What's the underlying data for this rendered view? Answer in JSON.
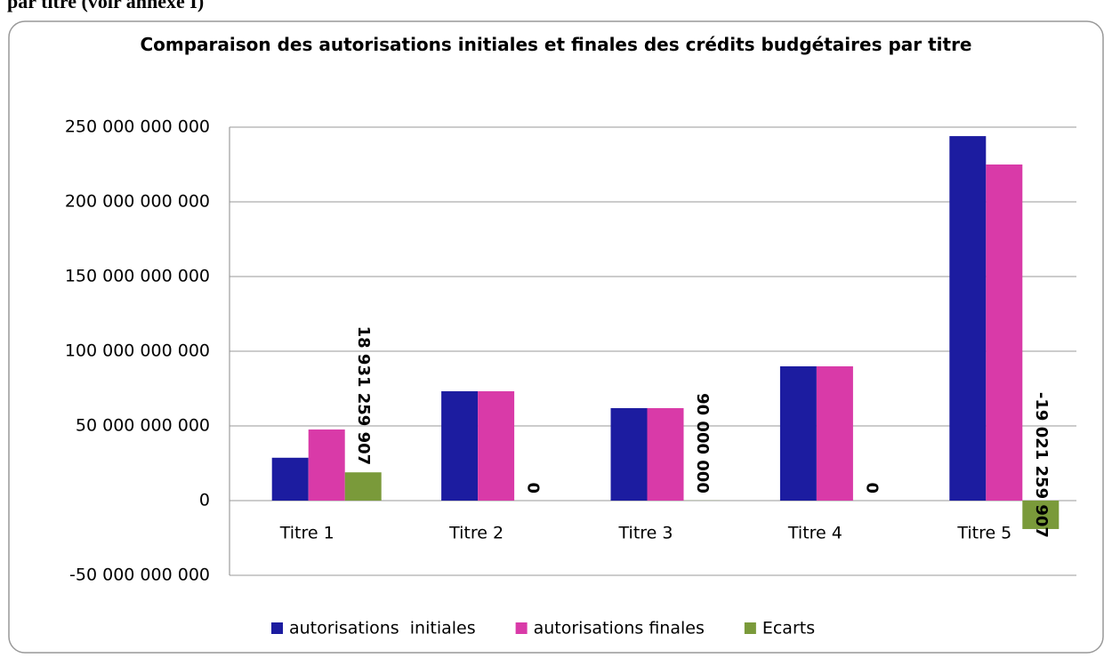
{
  "page_heading": "par titre (voir annexe I)",
  "chart_data": {
    "type": "bar",
    "title": "Comparaison des autorisations initiales et finales des crédits budgétaires par titre",
    "categories": [
      "Titre 1",
      "Titre 2",
      "Titre 3",
      "Titre 4",
      "Titre 5"
    ],
    "series": [
      {
        "name": "autorisations  initiales",
        "color": "#1c1ca0",
        "values": [
          28700000000,
          73200000000,
          61900000000,
          89900000000,
          244000000000
        ]
      },
      {
        "name": "autorisations finales",
        "color": "#d93aa8",
        "values": [
          47600000000,
          73200000000,
          61900000000,
          89900000000,
          225000000000
        ]
      },
      {
        "name": "Ecarts",
        "color": "#7a9a3a",
        "values": [
          18931259907,
          0,
          90000000,
          0,
          -19021259907
        ],
        "value_labels": [
          "18 931 259 907",
          "0",
          "90 000 000",
          "0",
          "-19 021 259 907"
        ]
      }
    ],
    "ylim": [
      -50000000000,
      250000000000
    ],
    "yticks": [
      {
        "value": -50000000000,
        "label": "-50 000 000 000"
      },
      {
        "value": 0,
        "label": "0"
      },
      {
        "value": 50000000000,
        "label": "50 000 000 000"
      },
      {
        "value": 100000000000,
        "label": "100 000 000 000"
      },
      {
        "value": 150000000000,
        "label": "150 000 000 000"
      },
      {
        "value": 200000000000,
        "label": "200 000 000 000"
      },
      {
        "value": 250000000000,
        "label": "250 000 000 000"
      }
    ],
    "grid": true,
    "legend": "bottom"
  }
}
